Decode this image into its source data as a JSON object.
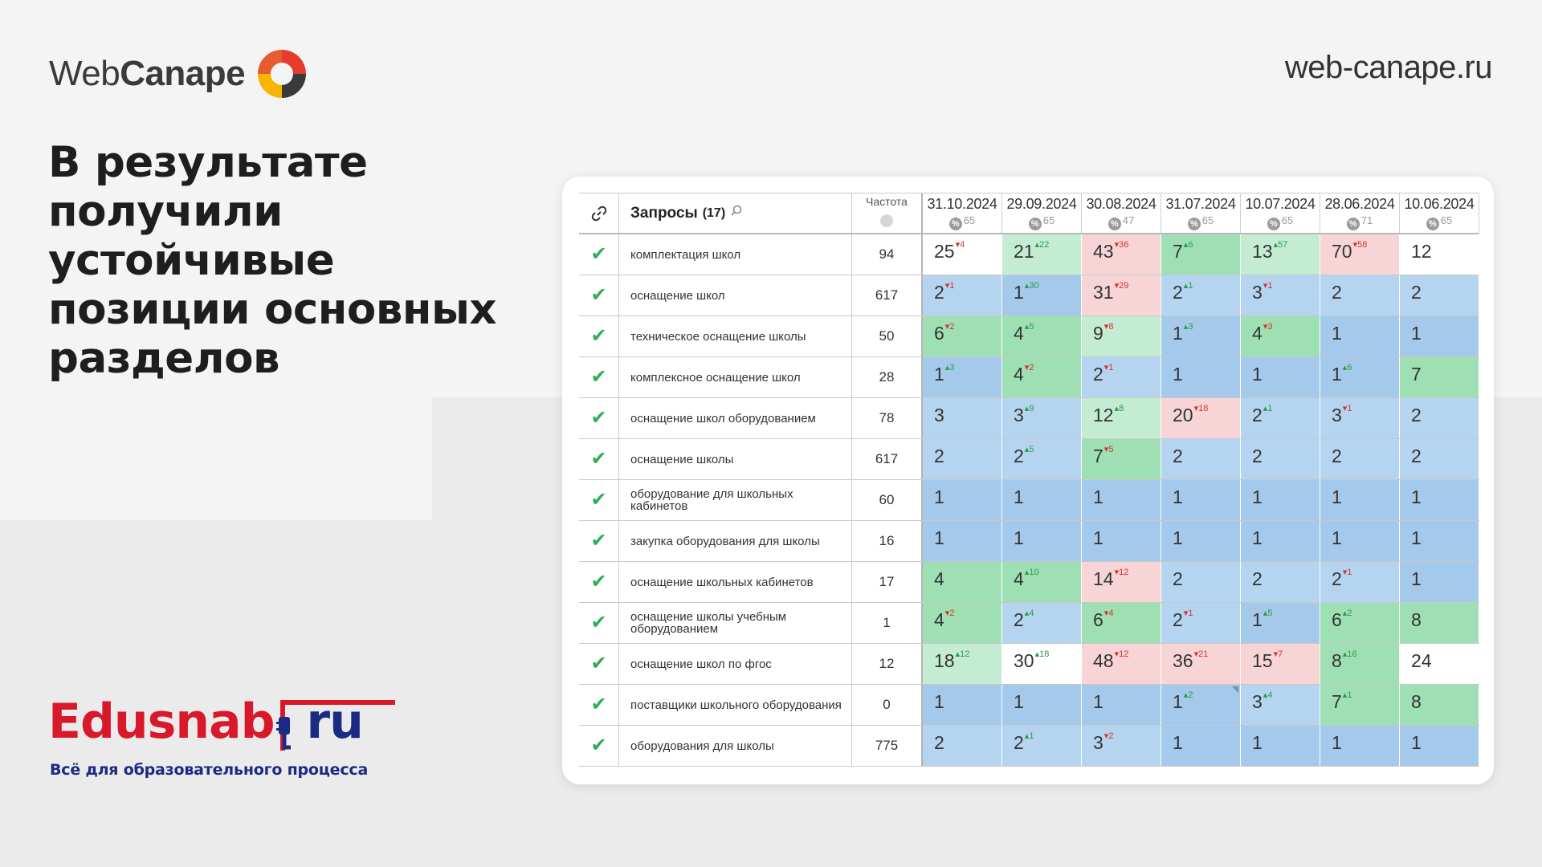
{
  "brand": {
    "logo_prefix": "Web",
    "logo_bold": "Canape",
    "site": "web-canape.ru"
  },
  "headline": [
    "В результате",
    "получили",
    "устойчивые",
    "позиции основных",
    "разделов"
  ],
  "client_logo": {
    "name_red": "Edusnab",
    "name_blue": "ru",
    "tagline": "Всё для образовательного процесса"
  },
  "table": {
    "header": {
      "queries_label": "Запросы",
      "queries_count": "(17)",
      "freq_label": "Частота",
      "dates": [
        {
          "date": "31.10.2024",
          "count": "65"
        },
        {
          "date": "29.09.2024",
          "count": "65"
        },
        {
          "date": "30.08.2024",
          "count": "47"
        },
        {
          "date": "31.07.2024",
          "count": "65"
        },
        {
          "date": "10.07.2024",
          "count": "65"
        },
        {
          "date": "28.06.2024",
          "count": "71"
        },
        {
          "date": "10.06.2024",
          "count": "65"
        }
      ]
    },
    "rows": [
      {
        "query": "комплектация школ",
        "freq": "94",
        "cells": [
          {
            "v": "25",
            "d": "4",
            "dir": "dn",
            "bg": "w"
          },
          {
            "v": "21",
            "d": "22",
            "dir": "up",
            "bg": "g"
          },
          {
            "v": "43",
            "d": "36",
            "dir": "dn",
            "bg": "r"
          },
          {
            "v": "7",
            "d": "6",
            "dir": "up",
            "bg": "G"
          },
          {
            "v": "13",
            "d": "57",
            "dir": "up",
            "bg": "g"
          },
          {
            "v": "70",
            "d": "58",
            "dir": "dn",
            "bg": "r"
          },
          {
            "v": "12",
            "d": "",
            "dir": "",
            "bg": "w"
          }
        ]
      },
      {
        "query": "оснащение школ",
        "freq": "617",
        "cells": [
          {
            "v": "2",
            "d": "1",
            "dir": "dn",
            "bg": "b"
          },
          {
            "v": "1",
            "d": "30",
            "dir": "up",
            "bg": "B"
          },
          {
            "v": "31",
            "d": "29",
            "dir": "dn",
            "bg": "r"
          },
          {
            "v": "2",
            "d": "1",
            "dir": "up",
            "bg": "b"
          },
          {
            "v": "3",
            "d": "1",
            "dir": "dn",
            "bg": "b"
          },
          {
            "v": "2",
            "d": "",
            "dir": "",
            "bg": "b"
          },
          {
            "v": "2",
            "d": "",
            "dir": "",
            "bg": "b"
          }
        ]
      },
      {
        "query": "техническое оснащение школы",
        "freq": "50",
        "cells": [
          {
            "v": "6",
            "d": "2",
            "dir": "dn",
            "bg": "G"
          },
          {
            "v": "4",
            "d": "5",
            "dir": "up",
            "bg": "G"
          },
          {
            "v": "9",
            "d": "8",
            "dir": "dn",
            "bg": "g"
          },
          {
            "v": "1",
            "d": "3",
            "dir": "up",
            "bg": "B"
          },
          {
            "v": "4",
            "d": "3",
            "dir": "dn",
            "bg": "G"
          },
          {
            "v": "1",
            "d": "",
            "dir": "",
            "bg": "B"
          },
          {
            "v": "1",
            "d": "",
            "dir": "",
            "bg": "B"
          }
        ]
      },
      {
        "query": "комплексное оснащение школ",
        "freq": "28",
        "cells": [
          {
            "v": "1",
            "d": "3",
            "dir": "up",
            "bg": "B"
          },
          {
            "v": "4",
            "d": "2",
            "dir": "dn",
            "bg": "G"
          },
          {
            "v": "2",
            "d": "1",
            "dir": "dn",
            "bg": "b"
          },
          {
            "v": "1",
            "d": "",
            "dir": "",
            "bg": "B"
          },
          {
            "v": "1",
            "d": "",
            "dir": "",
            "bg": "B"
          },
          {
            "v": "1",
            "d": "6",
            "dir": "up",
            "bg": "B"
          },
          {
            "v": "7",
            "d": "",
            "dir": "",
            "bg": "G"
          }
        ]
      },
      {
        "query": "оснащение школ оборудованием",
        "freq": "78",
        "cells": [
          {
            "v": "3",
            "d": "",
            "dir": "",
            "bg": "b"
          },
          {
            "v": "3",
            "d": "9",
            "dir": "up",
            "bg": "b"
          },
          {
            "v": "12",
            "d": "8",
            "dir": "up",
            "bg": "g"
          },
          {
            "v": "20",
            "d": "18",
            "dir": "dn",
            "bg": "r"
          },
          {
            "v": "2",
            "d": "1",
            "dir": "up",
            "bg": "b"
          },
          {
            "v": "3",
            "d": "1",
            "dir": "dn",
            "bg": "b"
          },
          {
            "v": "2",
            "d": "",
            "dir": "",
            "bg": "b"
          }
        ]
      },
      {
        "query": "оснащение школы",
        "freq": "617",
        "cells": [
          {
            "v": "2",
            "d": "",
            "dir": "",
            "bg": "b"
          },
          {
            "v": "2",
            "d": "5",
            "dir": "up",
            "bg": "b"
          },
          {
            "v": "7",
            "d": "5",
            "dir": "dn",
            "bg": "G"
          },
          {
            "v": "2",
            "d": "",
            "dir": "",
            "bg": "b"
          },
          {
            "v": "2",
            "d": "",
            "dir": "",
            "bg": "b"
          },
          {
            "v": "2",
            "d": "",
            "dir": "",
            "bg": "b"
          },
          {
            "v": "2",
            "d": "",
            "dir": "",
            "bg": "b"
          }
        ]
      },
      {
        "query": "оборудование для школьных кабинетов",
        "freq": "60",
        "cells": [
          {
            "v": "1",
            "d": "",
            "dir": "",
            "bg": "B"
          },
          {
            "v": "1",
            "d": "",
            "dir": "",
            "bg": "B"
          },
          {
            "v": "1",
            "d": "",
            "dir": "",
            "bg": "B"
          },
          {
            "v": "1",
            "d": "",
            "dir": "",
            "bg": "B"
          },
          {
            "v": "1",
            "d": "",
            "dir": "",
            "bg": "B"
          },
          {
            "v": "1",
            "d": "",
            "dir": "",
            "bg": "B"
          },
          {
            "v": "1",
            "d": "",
            "dir": "",
            "bg": "B"
          }
        ]
      },
      {
        "query": "закупка оборудования для школы",
        "freq": "16",
        "cells": [
          {
            "v": "1",
            "d": "",
            "dir": "",
            "bg": "B"
          },
          {
            "v": "1",
            "d": "",
            "dir": "",
            "bg": "B"
          },
          {
            "v": "1",
            "d": "",
            "dir": "",
            "bg": "B"
          },
          {
            "v": "1",
            "d": "",
            "dir": "",
            "bg": "B"
          },
          {
            "v": "1",
            "d": "",
            "dir": "",
            "bg": "B"
          },
          {
            "v": "1",
            "d": "",
            "dir": "",
            "bg": "B"
          },
          {
            "v": "1",
            "d": "",
            "dir": "",
            "bg": "B"
          }
        ]
      },
      {
        "query": "оснащение школьных кабинетов",
        "freq": "17",
        "cells": [
          {
            "v": "4",
            "d": "",
            "dir": "",
            "bg": "G"
          },
          {
            "v": "4",
            "d": "10",
            "dir": "up",
            "bg": "G"
          },
          {
            "v": "14",
            "d": "12",
            "dir": "dn",
            "bg": "r"
          },
          {
            "v": "2",
            "d": "",
            "dir": "",
            "bg": "b"
          },
          {
            "v": "2",
            "d": "",
            "dir": "",
            "bg": "b"
          },
          {
            "v": "2",
            "d": "1",
            "dir": "dn",
            "bg": "b"
          },
          {
            "v": "1",
            "d": "",
            "dir": "",
            "bg": "B"
          }
        ]
      },
      {
        "query": "оснащение школы учебным оборудованием",
        "freq": "1",
        "cells": [
          {
            "v": "4",
            "d": "2",
            "dir": "dn",
            "bg": "G"
          },
          {
            "v": "2",
            "d": "4",
            "dir": "up",
            "bg": "b"
          },
          {
            "v": "6",
            "d": "4",
            "dir": "dn",
            "bg": "G"
          },
          {
            "v": "2",
            "d": "1",
            "dir": "dn",
            "bg": "b"
          },
          {
            "v": "1",
            "d": "5",
            "dir": "up",
            "bg": "B"
          },
          {
            "v": "6",
            "d": "2",
            "dir": "up",
            "bg": "G"
          },
          {
            "v": "8",
            "d": "",
            "dir": "",
            "bg": "G"
          }
        ]
      },
      {
        "query": "оснащение школ по фгос",
        "freq": "12",
        "cells": [
          {
            "v": "18",
            "d": "12",
            "dir": "up",
            "bg": "g"
          },
          {
            "v": "30",
            "d": "18",
            "dir": "up",
            "bg": "w"
          },
          {
            "v": "48",
            "d": "12",
            "dir": "dn",
            "bg": "r"
          },
          {
            "v": "36",
            "d": "21",
            "dir": "dn",
            "bg": "r"
          },
          {
            "v": "15",
            "d": "7",
            "dir": "dn",
            "bg": "r"
          },
          {
            "v": "8",
            "d": "16",
            "dir": "up",
            "bg": "G"
          },
          {
            "v": "24",
            "d": "",
            "dir": "",
            "bg": "w"
          }
        ]
      },
      {
        "query": "поставщики школьного оборудования",
        "freq": "0",
        "cells": [
          {
            "v": "1",
            "d": "",
            "dir": "",
            "bg": "B"
          },
          {
            "v": "1",
            "d": "",
            "dir": "",
            "bg": "B"
          },
          {
            "v": "1",
            "d": "",
            "dir": "",
            "bg": "B"
          },
          {
            "v": "1",
            "d": "2",
            "dir": "up",
            "bg": "B",
            "mark": true
          },
          {
            "v": "3",
            "d": "4",
            "dir": "up",
            "bg": "b"
          },
          {
            "v": "7",
            "d": "1",
            "dir": "up",
            "bg": "G"
          },
          {
            "v": "8",
            "d": "",
            "dir": "",
            "bg": "G"
          }
        ]
      },
      {
        "query": "оборудования для школы",
        "freq": "775",
        "cells": [
          {
            "v": "2",
            "d": "",
            "dir": "",
            "bg": "b"
          },
          {
            "v": "2",
            "d": "1",
            "dir": "up",
            "bg": "b"
          },
          {
            "v": "3",
            "d": "2",
            "dir": "dn",
            "bg": "b"
          },
          {
            "v": "1",
            "d": "",
            "dir": "",
            "bg": "B"
          },
          {
            "v": "1",
            "d": "",
            "dir": "",
            "bg": "B"
          },
          {
            "v": "1",
            "d": "",
            "dir": "",
            "bg": "B"
          },
          {
            "v": "1",
            "d": "",
            "dir": "",
            "bg": "B"
          }
        ]
      }
    ]
  }
}
